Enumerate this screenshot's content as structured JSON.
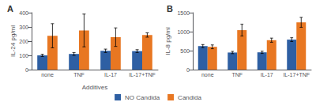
{
  "chart_data": [
    {
      "type": "bar",
      "title": "A",
      "ylabel": "IL-24 pg/ml",
      "xlabel": "Additives",
      "categories": [
        "none",
        "TNF",
        "IL-17",
        "IL-17+TNF"
      ],
      "series": [
        {
          "name": "NO Candida",
          "color": "#2E5FA3",
          "values": [
            100,
            110,
            132,
            130
          ],
          "errors": [
            8,
            10,
            12,
            10
          ]
        },
        {
          "name": "Candida",
          "color": "#E87722",
          "values": [
            238,
            275,
            228,
            243
          ],
          "errors": [
            85,
            115,
            65,
            15
          ]
        }
      ],
      "ylim": [
        0,
        400
      ],
      "yticks": [
        0,
        100,
        200,
        300,
        400
      ],
      "grid": false,
      "legend": "bottom"
    },
    {
      "type": "bar",
      "title": "B",
      "ylabel": "IL-8 pg/ml",
      "categories": [
        "none",
        "TNF",
        "IL-17",
        "IL-17+TNF"
      ],
      "series": [
        {
          "name": "NO Candida",
          "color": "#2E5FA3",
          "values": [
            620,
            450,
            455,
            790
          ],
          "errors": [
            40,
            30,
            30,
            50
          ]
        },
        {
          "name": "Candida",
          "color": "#E87722",
          "values": [
            600,
            1040,
            775,
            1245
          ],
          "errors": [
            50,
            155,
            55,
            130
          ]
        }
      ],
      "ylim": [
        0,
        1500
      ],
      "yticks": [
        0,
        500,
        1000,
        1500
      ],
      "grid": false,
      "legend": "bottom"
    }
  ]
}
